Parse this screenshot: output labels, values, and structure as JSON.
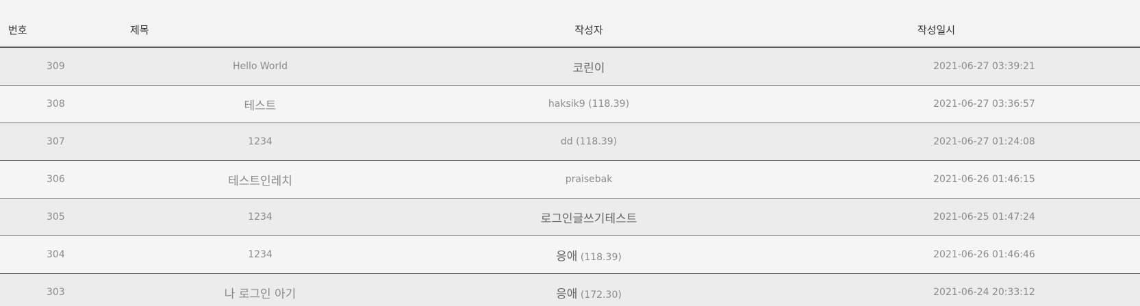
{
  "header": {
    "no": "번호",
    "title": "제목",
    "author": "작성자",
    "date": "작성일시"
  },
  "posts": [
    {
      "no": "309",
      "title": "Hello World",
      "author": "코린이",
      "author_ip": "",
      "date": "2021-06-27 03:39:21"
    },
    {
      "no": "308",
      "title": "테스트",
      "author": "haksik9",
      "author_ip": "(118.39)",
      "date": "2021-06-27 03:36:57"
    },
    {
      "no": "307",
      "title": "1234",
      "author": "dd",
      "author_ip": "(118.39)",
      "date": "2021-06-27 01:24:08"
    },
    {
      "no": "306",
      "title": "테스트인레치",
      "author": "praisebak",
      "author_ip": "",
      "date": "2021-06-26 01:46:15"
    },
    {
      "no": "305",
      "title": "1234",
      "author": "로그인글쓰기테스트",
      "author_ip": "",
      "date": "2021-06-25 01:47:24"
    },
    {
      "no": "304",
      "title": "1234",
      "author": "응애",
      "author_ip": "(118.39)",
      "date": "2021-06-26 01:46:46"
    },
    {
      "no": "303",
      "title": "나 로그인 아기",
      "author": "응애",
      "author_ip": "(172.30)",
      "date": "2021-06-24 20:33:12"
    }
  ]
}
